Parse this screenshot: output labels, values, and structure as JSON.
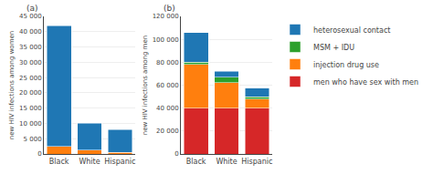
{
  "chart_data": [
    {
      "type": "bar",
      "stacked": true,
      "title": "(a)",
      "categories": [
        "Black",
        "White",
        "Hispanic"
      ],
      "series": [
        {
          "name": "injection drug use",
          "color": "#ff7f0e",
          "values": [
            2500,
            1200,
            500
          ]
        },
        {
          "name": "heterosexual contact",
          "color": "#1f77b4",
          "values": [
            39500,
            8800,
            7500
          ]
        }
      ],
      "ylabel": "new HIV infections among women",
      "ylim": [
        0,
        45000
      ],
      "yticks": [
        0,
        {
          "value": 5000,
          "label": "5 000"
        },
        {
          "value": 10000,
          "label": "10 000"
        },
        {
          "value": 15000,
          "label": "15 000"
        },
        {
          "value": 20000,
          "label": "20 000"
        },
        {
          "value": 25000,
          "label": "25 000"
        },
        {
          "value": 30000,
          "label": "30 000"
        },
        {
          "value": 35000,
          "label": "35 000"
        },
        {
          "value": 40000,
          "label": "40 000"
        },
        {
          "value": 45000,
          "label": "45 000"
        }
      ],
      "grid": true
    },
    {
      "type": "bar",
      "stacked": true,
      "title": "(b)",
      "categories": [
        "Black",
        "White",
        "Hispanic"
      ],
      "series": [
        {
          "name": "men who have sex with men",
          "color": "#d62728",
          "values": [
            40000,
            40000,
            40000
          ]
        },
        {
          "name": "injection drug use",
          "color": "#ff7f0e",
          "values": [
            38000,
            22000,
            8000
          ]
        },
        {
          "name": "MSM + IDU",
          "color": "#2ca02c",
          "values": [
            2000,
            5000,
            2000
          ]
        },
        {
          "name": "heterosexual contact",
          "color": "#1f77b4",
          "values": [
            26000,
            5000,
            7500
          ]
        }
      ],
      "ylabel": "new HIV infections among men",
      "ylim": [
        0,
        120000
      ],
      "yticks": [
        0,
        {
          "value": 20000,
          "label": "20 000"
        },
        {
          "value": 40000,
          "label": "40 000"
        },
        {
          "value": 60000,
          "label": "60 000"
        },
        {
          "value": 80000,
          "label": "80 000"
        },
        {
          "value": 100000,
          "label": "100 000"
        },
        {
          "value": 120000,
          "label": "120 000"
        }
      ],
      "grid": true
    }
  ]
}
